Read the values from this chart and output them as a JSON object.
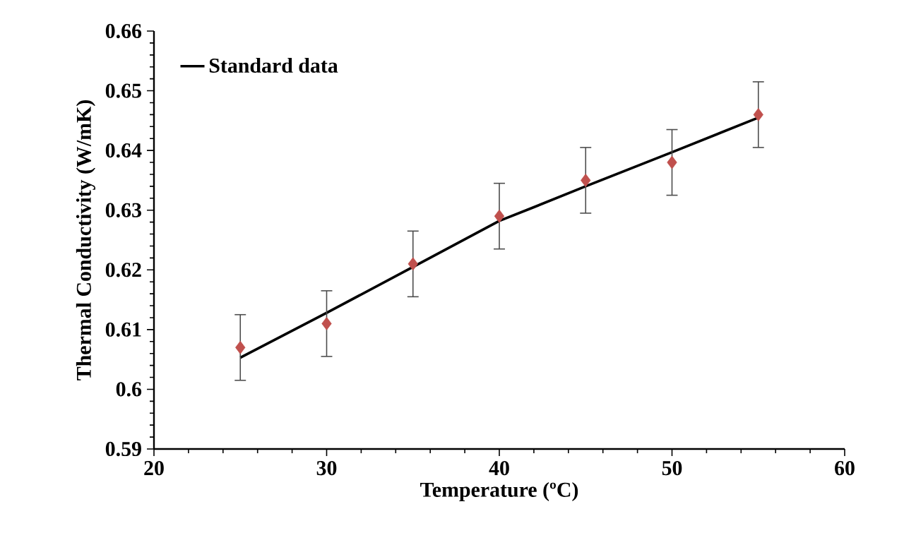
{
  "chart_data": {
    "type": "line",
    "xlabel": "Temperature (ºC)",
    "ylabel": "Thermal Conductivity (W/mK)",
    "xlim": [
      20,
      60
    ],
    "xticks": [
      20,
      30,
      40,
      50,
      60
    ],
    "ylim": [
      0.59,
      0.66
    ],
    "yticks": [
      0.59,
      0.6,
      0.61,
      0.62,
      0.63,
      0.64,
      0.65,
      0.66
    ],
    "grid": false,
    "legend": "top left",
    "series": [
      {
        "name": "Standard data",
        "color": "#000000",
        "marker": "none",
        "x": [
          25,
          30,
          35,
          40,
          42,
          45,
          50,
          55
        ],
        "values": [
          0.6053,
          0.6128,
          0.6205,
          0.6282,
          0.6305,
          0.634,
          0.6397,
          0.6455
        ]
      },
      {
        "type": "scatter",
        "color": "#c0504d",
        "marker": "diamond",
        "x": [
          25,
          30,
          35,
          40,
          45,
          50,
          55
        ],
        "values": [
          0.607,
          0.611,
          0.621,
          0.629,
          0.635,
          0.638,
          0.646
        ],
        "errors": [
          0.0055,
          0.0055,
          0.0055,
          0.0055,
          0.0055,
          0.0055,
          0.0055
        ]
      }
    ]
  }
}
